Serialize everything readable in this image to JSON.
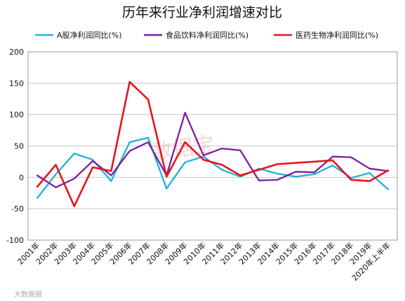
{
  "chart_data": {
    "type": "line",
    "title": "历年来行业净利润增速对比",
    "categories": [
      "2001年",
      "2002年",
      "2003年",
      "2004年",
      "2005年",
      "2006年",
      "2007年",
      "2008年",
      "2009年",
      "2010年",
      "2011年",
      "2012年",
      "2013年",
      "2014年",
      "2015年",
      "2016年",
      "2017年",
      "2018年",
      "2019年",
      "2020年上半年"
    ],
    "ylim": [
      -100,
      200
    ],
    "yticks": [
      -100,
      -50,
      0,
      50,
      100,
      150,
      200
    ],
    "grid": true,
    "legend_position": "top",
    "series": [
      {
        "name": "A股净利润同比(%)",
        "color": "#1fb2d8",
        "values": [
          -33,
          5,
          38,
          28,
          -6,
          56,
          63,
          -18,
          24,
          33,
          12,
          1,
          14,
          6,
          1,
          5,
          19,
          -1,
          7,
          -19
        ]
      },
      {
        "name": "食品饮料净利润同比(%)",
        "color": "#7b1fa2",
        "values": [
          3,
          -16,
          -2,
          26,
          3,
          42,
          56,
          3,
          103,
          35,
          46,
          43,
          -5,
          -4,
          9,
          8,
          33,
          32,
          14,
          10
        ]
      },
      {
        "name": "医药生物净利润同比(%)",
        "color": "#e8141a",
        "values": [
          -15,
          20,
          -46,
          16,
          10,
          152,
          124,
          1,
          56,
          28,
          20,
          3,
          12,
          21,
          23,
          25,
          27,
          -4,
          -6,
          11
        ]
      }
    ]
  },
  "watermarks": {
    "main": "数据宝",
    "corner": "大数据报"
  }
}
